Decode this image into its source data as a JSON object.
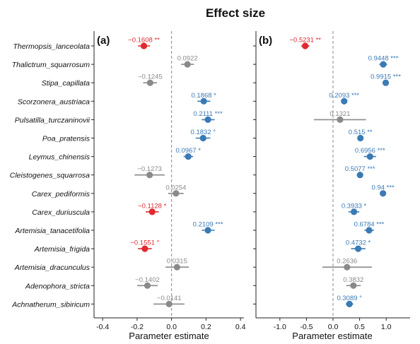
{
  "title": "Effect size",
  "colors": {
    "negative": "#e0292f",
    "positive": "#3a7ab5",
    "ns": "#8a8a8a",
    "axis": "#222222",
    "zero_line": "#888888"
  },
  "chart_data": [
    {
      "type": "scatter",
      "panel_label": "(a)",
      "xlabel": "Parameter estimate",
      "xlim": [
        -0.45,
        0.42
      ],
      "xticks": [
        -0.4,
        -0.2,
        0.0,
        0.2,
        0.4
      ],
      "xtick_labels": [
        "-0.4",
        "-0.2",
        "0.0",
        "0.2",
        "0.4"
      ],
      "zero_line": true,
      "categories": [
        "Thermopsis_lanceolata",
        "Thalictrum_squarrosum",
        "Stipa_capillata",
        "Scorzonera_austriaca",
        "Pulsatilla_turczaninovii",
        "Poa_pratensis",
        "Leymus_chinensis",
        "Cleistogenes_squarrosa",
        "Carex_pediformis",
        "Carex_duriuscula",
        "Artemisia_tanacetifolia",
        "Artemisia_frigida",
        "Artemisia_dracunculus",
        "Adenophora_stricta",
        "Achnatherum_sibiricum"
      ],
      "points": [
        {
          "y": "Thermopsis_lanceolata",
          "x": -0.1608,
          "low": -0.195,
          "high": -0.125,
          "label": "−0.1608 **",
          "color": "negative"
        },
        {
          "y": "Thalictrum_squarrosum",
          "x": 0.0922,
          "low": 0.055,
          "high": 0.13,
          "label": "0.0922",
          "color": "ns"
        },
        {
          "y": "Stipa_capillata",
          "x": -0.1245,
          "low": -0.165,
          "high": -0.085,
          "label": "−0.1245",
          "color": "ns"
        },
        {
          "y": "Scorzonera_austriaca",
          "x": 0.1868,
          "low": 0.15,
          "high": 0.225,
          "label": "0.1868 *",
          "color": "positive"
        },
        {
          "y": "Pulsatilla_turczaninovii",
          "x": 0.2111,
          "low": 0.175,
          "high": 0.25,
          "label": "0.2111 ***",
          "color": "positive"
        },
        {
          "y": "Poa_pratensis",
          "x": 0.1832,
          "low": 0.14,
          "high": 0.225,
          "label": "0.1832 °",
          "color": "positive"
        },
        {
          "y": "Leymus_chinensis",
          "x": 0.0967,
          "low": 0.07,
          "high": 0.125,
          "label": "0.0967 *",
          "color": "positive"
        },
        {
          "y": "Cleistogenes_squarrosa",
          "x": -0.1273,
          "low": -0.215,
          "high": -0.04,
          "label": "−0.1273",
          "color": "ns"
        },
        {
          "y": "Carex_pediformis",
          "x": 0.0254,
          "low": -0.02,
          "high": 0.07,
          "label": "0.0254",
          "color": "ns"
        },
        {
          "y": "Carex_duriuscula",
          "x": -0.1128,
          "low": -0.15,
          "high": -0.075,
          "label": "−0.1128 *",
          "color": "negative"
        },
        {
          "y": "Artemisia_tanacetifolia",
          "x": 0.2109,
          "low": 0.175,
          "high": 0.25,
          "label": "0.2109 ***",
          "color": "positive"
        },
        {
          "y": "Artemisia_frigida",
          "x": -0.1551,
          "low": -0.195,
          "high": -0.115,
          "label": "−0.1551 °",
          "color": "negative"
        },
        {
          "y": "Artemisia_dracunculus",
          "x": 0.0315,
          "low": -0.035,
          "high": 0.1,
          "label": "0.0315",
          "color": "ns"
        },
        {
          "y": "Adenophora_stricta",
          "x": -0.1402,
          "low": -0.2,
          "high": -0.08,
          "label": "−0.1402",
          "color": "ns"
        },
        {
          "y": "Achnatherum_sibiricum",
          "x": -0.0141,
          "low": -0.105,
          "high": 0.075,
          "label": "−0.0141",
          "color": "ns"
        }
      ]
    },
    {
      "type": "scatter",
      "panel_label": "(b)",
      "xlabel": "Parameter estimate",
      "xlim": [
        -1.45,
        1.45
      ],
      "xticks": [
        -1.0,
        -0.5,
        0.0,
        0.5,
        1.0
      ],
      "xtick_labels": [
        "-1.0",
        "-0.5",
        "0.0",
        "0.5",
        "1.0"
      ],
      "zero_line": true,
      "categories": [
        "Thermopsis_lanceolata",
        "Thalictrum_squarrosum",
        "Stipa_capillata",
        "Scorzonera_austriaca",
        "Pulsatilla_turczaninovii",
        "Poa_pratensis",
        "Leymus_chinensis",
        "Cleistogenes_squarrosa",
        "Carex_pediformis",
        "Carex_duriuscula",
        "Artemisia_tanacetifolia",
        "Artemisia_frigida",
        "Artemisia_dracunculus",
        "Adenophora_stricta",
        "Achnatherum_sibiricum"
      ],
      "points": [
        {
          "y": "Thermopsis_lanceolata",
          "x": -0.5231,
          "low": -0.6,
          "high": -0.445,
          "label": "−0.5231 **",
          "color": "negative"
        },
        {
          "y": "Thalictrum_squarrosum",
          "x": 0.9448,
          "low": 0.87,
          "high": 1.02,
          "label": "0.9448 ***",
          "color": "positive"
        },
        {
          "y": "Stipa_capillata",
          "x": 0.9915,
          "low": 0.95,
          "high": 1.035,
          "label": "0.9915 ***",
          "color": "positive"
        },
        {
          "y": "Scorzonera_austriaca",
          "x": 0.2093,
          "low": 0.15,
          "high": 0.27,
          "label": "0.2093 ***",
          "color": "positive"
        },
        {
          "y": "Pulsatilla_turczaninovii",
          "x": 0.1321,
          "low": -0.36,
          "high": 0.62,
          "label": "0.1321",
          "color": "ns"
        },
        {
          "y": "Poa_pratensis",
          "x": 0.515,
          "low": 0.47,
          "high": 0.56,
          "label": "0.515 **",
          "color": "positive"
        },
        {
          "y": "Leymus_chinensis",
          "x": 0.6956,
          "low": 0.58,
          "high": 0.81,
          "label": "0.6956 ***",
          "color": "positive"
        },
        {
          "y": "Cleistogenes_squarrosa",
          "x": 0.5077,
          "low": 0.45,
          "high": 0.565,
          "label": "0.5077 ***",
          "color": "positive"
        },
        {
          "y": "Carex_pediformis",
          "x": 0.94,
          "low": 0.9,
          "high": 0.98,
          "label": "0.94 ***",
          "color": "positive"
        },
        {
          "y": "Carex_duriuscula",
          "x": 0.3933,
          "low": 0.29,
          "high": 0.495,
          "label": "0.3933 *",
          "color": "positive"
        },
        {
          "y": "Artemisia_tanacetifolia",
          "x": 0.6784,
          "low": 0.59,
          "high": 0.77,
          "label": "0.6784 ***",
          "color": "positive"
        },
        {
          "y": "Artemisia_frigida",
          "x": 0.4732,
          "low": 0.34,
          "high": 0.61,
          "label": "0.4732 *",
          "color": "positive"
        },
        {
          "y": "Artemisia_dracunculus",
          "x": 0.2636,
          "low": -0.2,
          "high": 0.73,
          "label": "0.2636",
          "color": "ns"
        },
        {
          "y": "Adenophora_stricta",
          "x": 0.3832,
          "low": 0.25,
          "high": 0.52,
          "label": "0.3832",
          "color": "ns"
        },
        {
          "y": "Achnatherum_sibiricum",
          "x": 0.3089,
          "low": 0.24,
          "high": 0.38,
          "label": "0.3089 °",
          "color": "positive"
        }
      ]
    }
  ]
}
